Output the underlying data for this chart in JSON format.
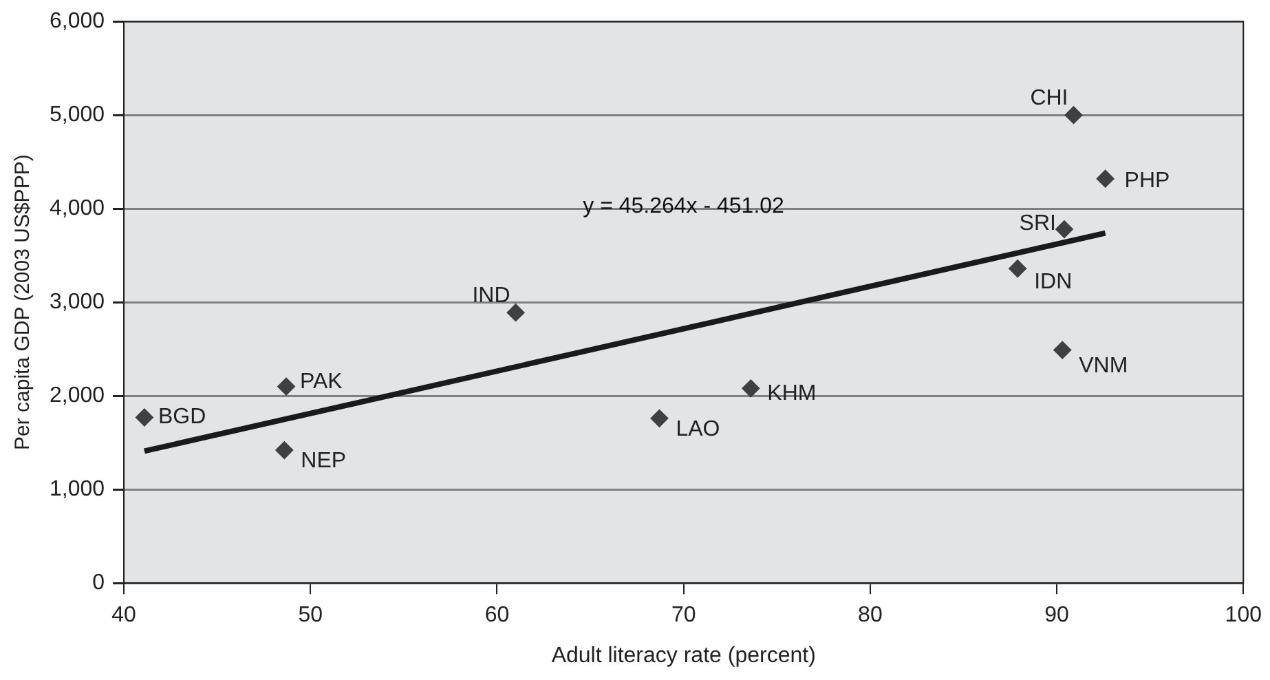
{
  "chart_data": {
    "type": "scatter",
    "xlabel": "Adult literacy rate (percent)",
    "ylabel": "Per capita GDP (2003 US$PPP)",
    "xlim": [
      40,
      100
    ],
    "xticks": [
      40,
      50,
      60,
      70,
      80,
      90,
      100
    ],
    "ylim": [
      0,
      6000
    ],
    "yticks": [
      {
        "value": 0,
        "label": "0"
      },
      {
        "value": 1000,
        "label": "1,000"
      },
      {
        "value": 2000,
        "label": "2,000"
      },
      {
        "value": 3000,
        "label": "3,000"
      },
      {
        "value": 4000,
        "label": "4,000"
      },
      {
        "value": 5000,
        "label": "5,000"
      },
      {
        "value": 6000,
        "label": "6,000"
      }
    ],
    "grid": "y",
    "marker": "diamond",
    "legend": false,
    "annotations": [
      "y = 45.264x - 451.02"
    ],
    "series": [
      {
        "name": "BGD",
        "color": "#404040",
        "x": [
          41.1
        ],
        "values": [
          1770
        ]
      },
      {
        "name": "PAK",
        "color": "#404040",
        "x": [
          48.7
        ],
        "values": [
          2100
        ]
      },
      {
        "name": "NEP",
        "color": "#404040",
        "x": [
          48.6
        ],
        "values": [
          1420
        ]
      },
      {
        "name": "IND",
        "color": "#404040",
        "x": [
          61.0
        ],
        "values": [
          2890
        ]
      },
      {
        "name": "LAO",
        "color": "#404040",
        "x": [
          68.7
        ],
        "values": [
          1760
        ]
      },
      {
        "name": "KHM",
        "color": "#404040",
        "x": [
          73.6
        ],
        "values": [
          2080
        ]
      },
      {
        "name": "IDN",
        "color": "#404040",
        "x": [
          87.9
        ],
        "values": [
          3360
        ]
      },
      {
        "name": "SRI",
        "color": "#404040",
        "x": [
          90.4
        ],
        "values": [
          3780
        ]
      },
      {
        "name": "VNM",
        "color": "#404040",
        "x": [
          90.3
        ],
        "values": [
          2490
        ]
      },
      {
        "name": "CHI",
        "color": "#404040",
        "x": [
          90.9
        ],
        "values": [
          5000
        ]
      },
      {
        "name": "PHP",
        "color": "#404040",
        "x": [
          92.6
        ],
        "values": [
          4320
        ]
      },
      {
        "type": "line",
        "color": "#1a1a1a",
        "x": [
          41.1,
          92.6
        ],
        "values": [
          1410,
          3740
        ],
        "marker": "none"
      }
    ]
  }
}
